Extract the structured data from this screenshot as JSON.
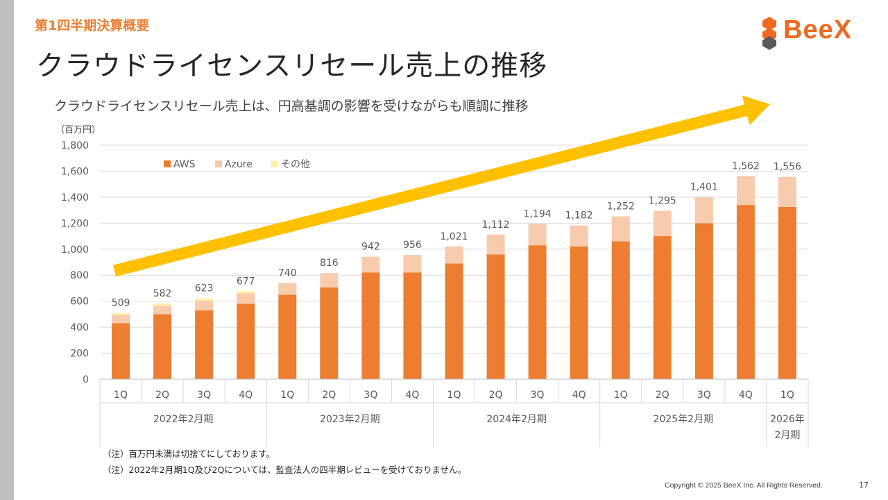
{
  "header": {
    "section_label": "第1四半期決算概要",
    "title": "クラウドライセンスリセール売上の推移",
    "subtitle": "クラウドライセンスリセール売上は、円高基調の影響を受けながらも順調に推移"
  },
  "logo": {
    "text": "BeeX"
  },
  "colors": {
    "aws": "#ed7d31",
    "azure": "#f8cbad",
    "other": "#fff2a8",
    "arrow": "#ffc000",
    "accent": "#ed7d31"
  },
  "chart_data": {
    "type": "bar",
    "stacked": true,
    "unit_label": "（百万円）",
    "ylim": [
      0,
      1800
    ],
    "yticks": [
      "0",
      "200",
      "400",
      "600",
      "800",
      "1,000",
      "1,200",
      "1,400",
      "1,600",
      "1,800"
    ],
    "categories": [
      "1Q",
      "2Q",
      "3Q",
      "4Q",
      "1Q",
      "2Q",
      "3Q",
      "4Q",
      "1Q",
      "2Q",
      "3Q",
      "4Q",
      "1Q",
      "2Q",
      "3Q",
      "4Q",
      "1Q"
    ],
    "groups": [
      {
        "label": "2022年2月期",
        "count": 4
      },
      {
        "label": "2023年2月期",
        "count": 4
      },
      {
        "label": "2024年2月期",
        "count": 4
      },
      {
        "label": "2025年2月期",
        "count": 4
      },
      {
        "label": "2026年\n2月期",
        "count": 1
      }
    ],
    "series": [
      {
        "name": "AWS",
        "values": [
          430,
          500,
          530,
          580,
          650,
          705,
          820,
          820,
          890,
          960,
          1030,
          1020,
          1060,
          1100,
          1200,
          1340,
          1325
        ]
      },
      {
        "name": "Azure",
        "values": [
          65,
          65,
          75,
          80,
          90,
          111,
          122,
          136,
          131,
          152,
          164,
          162,
          192,
          195,
          201,
          222,
          231
        ]
      },
      {
        "name": "その他",
        "values": [
          14,
          17,
          18,
          17,
          0,
          0,
          0,
          0,
          0,
          0,
          0,
          0,
          0,
          0,
          0,
          0,
          0
        ]
      }
    ],
    "totals": [
      509,
      582,
      623,
      677,
      740,
      816,
      942,
      956,
      1021,
      1112,
      1194,
      1182,
      1252,
      1295,
      1401,
      1562,
      1556
    ],
    "total_labels": [
      "509",
      "582",
      "623",
      "677",
      "740",
      "816",
      "942",
      "956",
      "1,021",
      "1,112",
      "1,194",
      "1,182",
      "1,252",
      "1,295",
      "1,401",
      "1,562",
      "1,556"
    ],
    "legend_position": "top-left",
    "grid": true
  },
  "footnotes": [
    "（注）百万円未満は切捨てにしております。",
    "（注）2022年2月期1Q及び2Qについては、監査法人の四半期レビューを受けておりません。"
  ],
  "footer": {
    "copyright": "Copyright © 2025 BeeX Inc. All Rights Reserved.",
    "page_number": "17"
  }
}
